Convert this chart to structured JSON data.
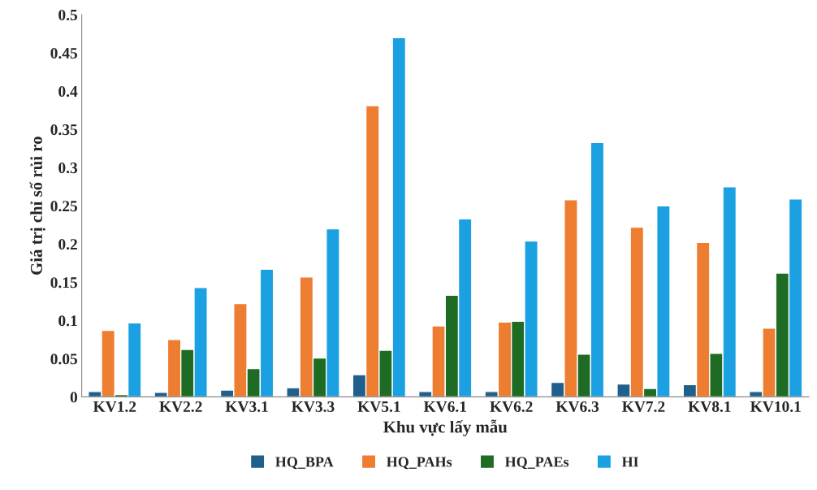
{
  "chart_data": {
    "type": "bar",
    "xlabel": "Khu vực lấy mẫu",
    "ylabel": "Giá trị chỉ số rủi ro",
    "categories": [
      "KV1.2",
      "KV2.2",
      "KV3.1",
      "KV3.3",
      "KV5.1",
      "KV6.1",
      "KV6.2",
      "KV6.3",
      "KV7.2",
      "KV8.1",
      "KV10.1"
    ],
    "series": [
      {
        "name": "HQ_BPA",
        "color": "#1f5f8b",
        "values": [
          0.007,
          0.006,
          0.009,
          0.012,
          0.029,
          0.007,
          0.007,
          0.019,
          0.017,
          0.016,
          0.007
        ]
      },
      {
        "name": "HQ_PAHs",
        "color": "#ed7d31",
        "values": [
          0.087,
          0.075,
          0.122,
          0.157,
          0.381,
          0.093,
          0.098,
          0.258,
          0.222,
          0.202,
          0.09
        ]
      },
      {
        "name": "HQ_PAEs",
        "color": "#1e6b24",
        "values": [
          0.003,
          0.062,
          0.037,
          0.051,
          0.061,
          0.133,
          0.099,
          0.056,
          0.011,
          0.057,
          0.162
        ]
      },
      {
        "name": "HI",
        "color": "#1ba1e2",
        "values": [
          0.097,
          0.143,
          0.167,
          0.22,
          0.47,
          0.233,
          0.204,
          0.333,
          0.25,
          0.275,
          0.259
        ]
      }
    ],
    "ylim": [
      0,
      0.5
    ],
    "yticks": [
      0,
      0.05,
      0.1,
      0.15,
      0.2,
      0.25,
      0.3,
      0.35,
      0.4,
      0.45,
      0.5
    ],
    "grid": false,
    "legend": "bottom"
  }
}
